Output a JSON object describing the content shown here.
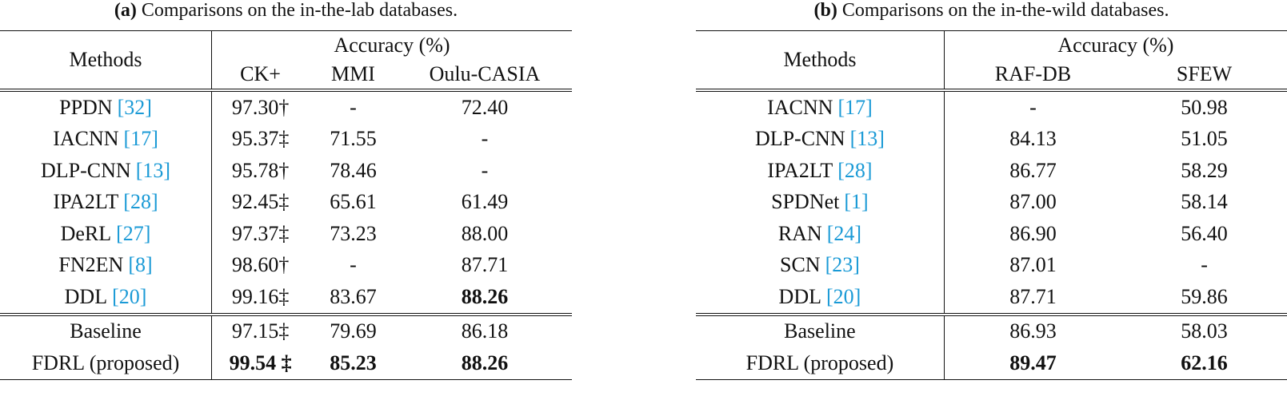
{
  "tables": [
    {
      "caption": {
        "label": "(a)",
        "text": "Comparisons on the in-the-lab databases."
      },
      "header": {
        "methods": "Methods",
        "group": "Accuracy (%)",
        "columns": [
          "CK+",
          "MMI",
          "Oulu-CASIA"
        ]
      },
      "sections": [
        [
          {
            "name": "PPDN",
            "ref": "[32]",
            "cells": [
              "97.30†",
              "-",
              "72.40"
            ],
            "bold": []
          },
          {
            "name": "IACNN",
            "ref": "[17]",
            "cells": [
              "95.37‡",
              "71.55",
              "-"
            ],
            "bold": []
          },
          {
            "name": "DLP-CNN",
            "ref": "[13]",
            "cells": [
              "95.78†",
              "78.46",
              "-"
            ],
            "bold": []
          },
          {
            "name": "IPA2LT",
            "ref": "[28]",
            "cells": [
              "92.45‡",
              "65.61",
              "61.49"
            ],
            "bold": []
          },
          {
            "name": "DeRL",
            "ref": "[27]",
            "cells": [
              "97.37‡",
              "73.23",
              "88.00"
            ],
            "bold": []
          },
          {
            "name": "FN2EN",
            "ref": "[8]",
            "cells": [
              "98.60†",
              "-",
              "87.71"
            ],
            "bold": []
          },
          {
            "name": "DDL",
            "ref": "[20]",
            "cells": [
              "99.16‡",
              "83.67",
              "88.26"
            ],
            "bold": [
              2
            ]
          }
        ],
        [
          {
            "name": "Baseline",
            "cells": [
              "97.15‡",
              "79.69",
              "86.18"
            ],
            "bold": []
          },
          {
            "name": "FDRL (proposed)",
            "cells": [
              "99.54 ‡",
              "85.23",
              "88.26"
            ],
            "bold": [
              0,
              1,
              2
            ]
          }
        ]
      ]
    },
    {
      "caption": {
        "label": "(b)",
        "text": "Comparisons on the in-the-wild databases."
      },
      "header": {
        "methods": "Methods",
        "group": "Accuracy (%)",
        "columns": [
          "RAF-DB",
          "SFEW"
        ]
      },
      "sections": [
        [
          {
            "name": "IACNN",
            "ref": "[17]",
            "cells": [
              "-",
              "50.98"
            ],
            "bold": []
          },
          {
            "name": "DLP-CNN",
            "ref": "[13]",
            "cells": [
              "84.13",
              "51.05"
            ],
            "bold": []
          },
          {
            "name": "IPA2LT",
            "ref": "[28]",
            "cells": [
              "86.77",
              "58.29"
            ],
            "bold": []
          },
          {
            "name": "SPDNet",
            "ref": "[1]",
            "cells": [
              "87.00",
              "58.14"
            ],
            "bold": []
          },
          {
            "name": "RAN",
            "ref": "[24]",
            "cells": [
              "86.90",
              "56.40"
            ],
            "bold": []
          },
          {
            "name": "SCN",
            "ref": "[23]",
            "cells": [
              "87.01",
              "-"
            ],
            "bold": []
          },
          {
            "name": "DDL",
            "ref": "[20]",
            "cells": [
              "87.71",
              "59.86"
            ],
            "bold": []
          }
        ],
        [
          {
            "name": "Baseline",
            "cells": [
              "86.93",
              "58.03"
            ],
            "bold": []
          },
          {
            "name": "FDRL (proposed)",
            "cells": [
              "89.47",
              "62.16"
            ],
            "bold": [
              0,
              1
            ]
          }
        ]
      ]
    }
  ]
}
